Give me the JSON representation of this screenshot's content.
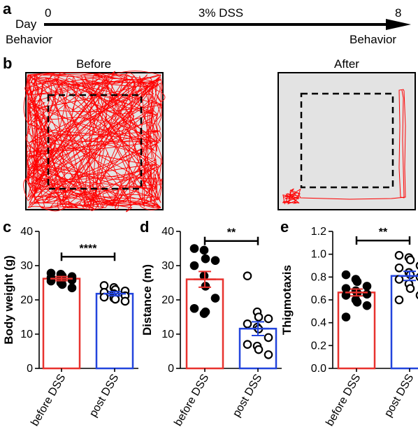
{
  "panels": {
    "a": "a",
    "b": "b",
    "c": "c",
    "d": "d",
    "e": "e"
  },
  "timeline": {
    "day_label": "Day",
    "start_day": "0",
    "end_day": "8",
    "treatment": "3% DSS",
    "start_label": "Behavior",
    "end_label": "Behavior"
  },
  "tracking": {
    "before_title": "Before",
    "after_title": "After",
    "arena_fill": "#e3e3e3",
    "track_color": "#ff0000"
  },
  "colors": {
    "before": "#e8322e",
    "post": "#2244dd"
  },
  "chart_data": [
    {
      "id": "c",
      "type": "bar",
      "ylabel": "Body weight (g)",
      "ylim": [
        0,
        40
      ],
      "yticks": [
        0,
        10,
        20,
        30,
        40
      ],
      "ytick_labels": [
        "0",
        "10",
        "20",
        "30",
        "40"
      ],
      "categories": [
        "before DSS",
        "post DSS"
      ],
      "means": [
        26.2,
        21.8
      ],
      "sem": [
        0.6,
        0.6
      ],
      "points": [
        [
          27.8,
          27.5,
          27.0,
          26.8,
          26.5,
          26.3,
          26.0,
          25.8,
          25.5,
          25.0,
          24.5,
          23.5
        ],
        [
          24.2,
          23.6,
          23.0,
          22.6,
          22.2,
          21.8,
          21.5,
          21.2,
          20.8,
          20.5,
          20.2,
          19.6
        ]
      ],
      "significance": "****"
    },
    {
      "id": "d",
      "type": "bar",
      "ylabel": "Distance (m)",
      "ylim": [
        0,
        40
      ],
      "yticks": [
        0,
        10,
        20,
        30,
        40
      ],
      "ytick_labels": [
        "0",
        "10",
        "20",
        "30",
        "40"
      ],
      "categories": [
        "before DSS",
        "post DSS"
      ],
      "means": [
        26.0,
        11.6
      ],
      "sem": [
        2.3,
        2.0
      ],
      "points": [
        [
          35.0,
          34.5,
          32.0,
          31.5,
          30.0,
          27.0,
          24.0,
          20.5,
          17.5,
          16.0,
          16.5
        ],
        [
          27.0,
          16.5,
          15.0,
          14.5,
          13.0,
          12.0,
          11.5,
          9.0,
          7.0,
          6.5,
          5.5,
          4.0
        ]
      ],
      "significance": "**"
    },
    {
      "id": "e",
      "type": "bar",
      "ylabel": "Thigmotaxis",
      "ylim": [
        0,
        1.2
      ],
      "yticks": [
        0,
        0.2,
        0.4,
        0.6,
        0.8,
        1.0,
        1.2
      ],
      "ytick_labels": [
        "0.0",
        "0.2",
        "0.4",
        "0.6",
        "0.8",
        "1.0",
        "1.2"
      ],
      "categories": [
        "before DSS",
        "post DSS"
      ],
      "means": [
        0.665,
        0.81
      ],
      "sem": [
        0.03,
        0.04
      ],
      "points": [
        [
          0.82,
          0.78,
          0.76,
          0.72,
          0.7,
          0.68,
          0.66,
          0.65,
          0.64,
          0.6,
          0.58,
          0.55,
          0.45
        ],
        [
          0.99,
          0.97,
          0.95,
          0.9,
          0.88,
          0.84,
          0.82,
          0.8,
          0.78,
          0.74,
          0.7,
          0.64,
          0.6
        ]
      ],
      "significance": "**"
    }
  ]
}
